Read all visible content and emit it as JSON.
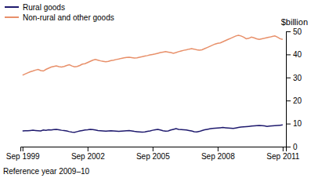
{
  "chart_data": {
    "type": "line",
    "ylabel": "$billion",
    "footer": "Reference year 2009–10",
    "x": [
      1999.75,
      1999.87,
      1999.99,
      2000.11,
      2000.23,
      2000.35,
      2000.47,
      2000.59,
      2000.71,
      2000.83,
      2000.95,
      2001.07,
      2001.19,
      2001.31,
      2001.43,
      2001.55,
      2001.67,
      2001.79,
      2001.91,
      2002.03,
      2002.15,
      2002.27,
      2002.39,
      2002.51,
      2002.63,
      2002.75,
      2002.87,
      2002.99,
      2003.11,
      2003.23,
      2003.35,
      2003.47,
      2003.59,
      2003.71,
      2003.83,
      2003.95,
      2004.07,
      2004.19,
      2004.31,
      2004.43,
      2004.55,
      2004.67,
      2004.79,
      2004.91,
      2005.03,
      2005.15,
      2005.27,
      2005.39,
      2005.51,
      2005.63,
      2005.75,
      2005.87,
      2005.99,
      2006.11,
      2006.23,
      2006.35,
      2006.47,
      2006.59,
      2006.71,
      2006.83,
      2006.95,
      2007.07,
      2007.19,
      2007.31,
      2007.43,
      2007.55,
      2007.67,
      2007.79,
      2007.91,
      2008.03,
      2008.15,
      2008.27,
      2008.39,
      2008.51,
      2008.63,
      2008.75,
      2008.87,
      2008.99,
      2009.11,
      2009.23,
      2009.35,
      2009.47,
      2009.59,
      2009.71,
      2009.83,
      2009.95,
      2010.07,
      2010.19,
      2010.31,
      2010.43,
      2010.55,
      2010.67,
      2010.79,
      2010.91,
      2011.03,
      2011.15,
      2011.27,
      2011.39,
      2011.51,
      2011.63,
      2011.75
    ],
    "series": [
      {
        "name": "Rural goods",
        "color": "#1f1a6e",
        "values": [
          6.8,
          6.9,
          6.9,
          7.0,
          7.1,
          7.0,
          6.9,
          6.8,
          7.2,
          7.1,
          7.3,
          7.2,
          7.4,
          7.5,
          7.3,
          7.1,
          7.0,
          6.8,
          6.5,
          6.3,
          6.2,
          6.5,
          6.8,
          7.0,
          7.2,
          7.3,
          7.5,
          7.4,
          7.2,
          7.0,
          6.9,
          6.8,
          6.7,
          6.8,
          6.9,
          6.8,
          6.7,
          6.6,
          6.7,
          6.8,
          6.9,
          7.0,
          6.8,
          6.6,
          6.5,
          6.4,
          6.3,
          6.4,
          6.6,
          6.8,
          7.1,
          7.3,
          7.5,
          7.2,
          6.9,
          6.7,
          6.8,
          7.2,
          7.5,
          7.8,
          7.5,
          7.4,
          7.3,
          7.2,
          7.0,
          6.8,
          6.5,
          6.4,
          6.6,
          7.0,
          7.3,
          7.5,
          7.7,
          7.9,
          8.0,
          8.1,
          8.2,
          8.3,
          8.2,
          8.1,
          8.0,
          7.9,
          8.1,
          8.3,
          8.5,
          8.6,
          8.7,
          8.8,
          8.9,
          9.0,
          9.1,
          9.2,
          9.1,
          9.0,
          8.8,
          8.9,
          9.0,
          9.1,
          9.2,
          9.3,
          9.4
        ]
      },
      {
        "name": "Non-rural and other goods",
        "color": "#e8906a",
        "values": [
          31.0,
          31.5,
          32.0,
          32.5,
          32.8,
          33.2,
          33.5,
          33.0,
          32.8,
          33.5,
          34.0,
          34.5,
          34.8,
          35.0,
          34.7,
          34.5,
          34.8,
          35.2,
          35.5,
          35.0,
          34.6,
          34.8,
          35.2,
          35.8,
          36.0,
          36.5,
          37.0,
          37.5,
          37.8,
          37.5,
          37.2,
          37.0,
          36.8,
          37.0,
          37.3,
          37.5,
          37.8,
          38.0,
          38.3,
          38.5,
          38.7,
          38.8,
          38.6,
          38.4,
          38.5,
          38.8,
          39.0,
          39.3,
          39.5,
          39.8,
          40.0,
          40.2,
          40.5,
          40.8,
          41.0,
          41.2,
          41.0,
          40.8,
          40.5,
          40.8,
          41.2,
          41.5,
          41.8,
          42.0,
          42.3,
          42.5,
          42.3,
          42.0,
          41.8,
          42.0,
          42.5,
          43.0,
          43.5,
          44.0,
          44.5,
          44.8,
          45.0,
          45.5,
          46.0,
          46.5,
          47.0,
          47.5,
          48.0,
          48.3,
          48.0,
          47.5,
          46.8,
          47.0,
          47.5,
          47.2,
          46.8,
          46.5,
          46.8,
          47.0,
          47.3,
          47.5,
          47.8,
          48.0,
          47.5,
          46.8,
          46.5
        ]
      }
    ],
    "xlim": [
      1999.65,
      2011.9
    ],
    "xticks": [
      {
        "value": 1999.75,
        "label": "Sep 1999"
      },
      {
        "value": 2002.75,
        "label": "Sep 2002"
      },
      {
        "value": 2005.75,
        "label": "Sep 2005"
      },
      {
        "value": 2008.75,
        "label": "Sep 2008"
      },
      {
        "value": 2011.75,
        "label": "Sep 2011"
      }
    ],
    "ylim": [
      0,
      50
    ],
    "yticks": [
      0,
      10,
      20,
      30,
      40,
      50
    ],
    "legend": "top",
    "grid": false
  }
}
